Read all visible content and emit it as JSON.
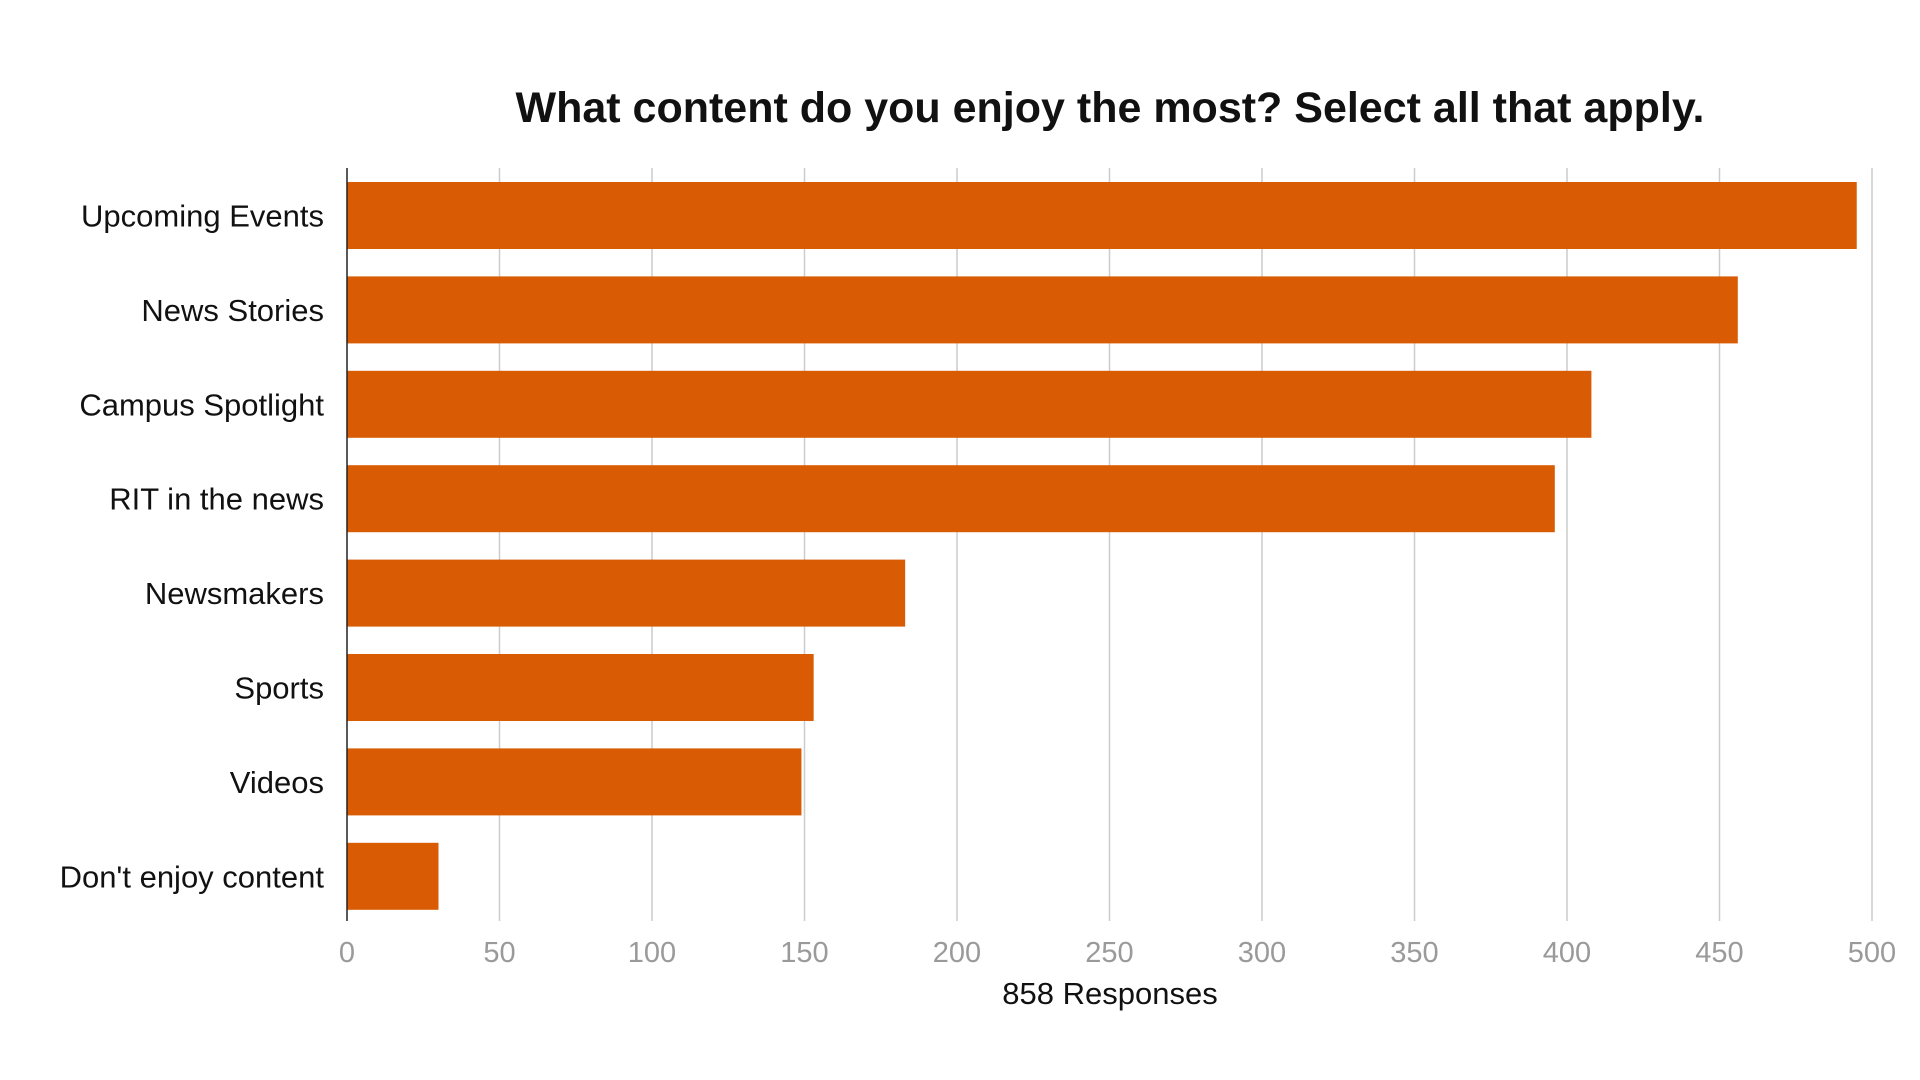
{
  "chart_data": {
    "type": "bar",
    "orientation": "horizontal",
    "title": "What content do you enjoy the most? Select all that apply.",
    "xlabel": "858 Responses",
    "ylabel": "",
    "categories": [
      "Upcoming Events",
      "News Stories",
      "Campus Spotlight",
      "RIT in the news",
      "Newsmakers",
      "Sports",
      "Videos",
      "Don't enjoy content"
    ],
    "values": [
      495,
      456,
      408,
      396,
      183,
      153,
      149,
      30
    ],
    "xlim": [
      0,
      500
    ],
    "xticks": [
      "0",
      "50",
      "100",
      "150",
      "200",
      "250",
      "300",
      "350",
      "400",
      "450",
      "500"
    ],
    "grid": "vertical",
    "legend": "none",
    "bar_color": "#D95B04"
  }
}
